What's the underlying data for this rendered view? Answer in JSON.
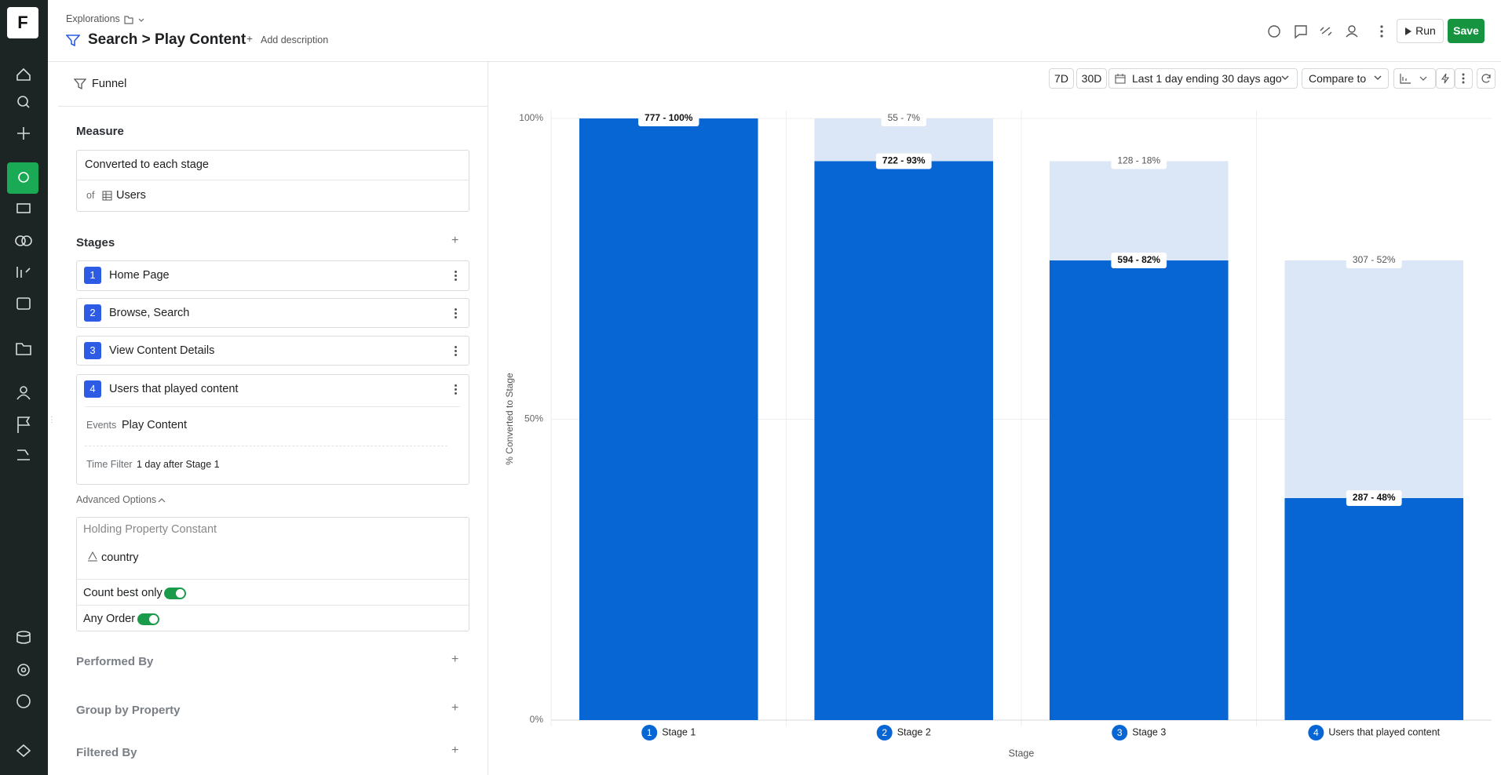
{
  "nav": {
    "logo": "F"
  },
  "header": {
    "breadcrumb": "Explorations",
    "title": "Search > Play Content",
    "add_description": "Add description",
    "run": "Run",
    "save": "Save"
  },
  "panel": {
    "type_label": "Funnel",
    "measure": {
      "heading": "Measure",
      "metric": "Converted to each stage",
      "of": "of",
      "entity": "Users"
    },
    "stages": {
      "heading": "Stages",
      "items": [
        {
          "number": "1",
          "name": "Home Page"
        },
        {
          "number": "2",
          "name": "Browse, Search"
        },
        {
          "number": "3",
          "name": "View Content Details"
        },
        {
          "number": "4",
          "name": "Users that played content",
          "events_label": "Events",
          "event": "Play Content",
          "time_filter_label": "Time Filter",
          "time_filter": "1 day after Stage 1"
        }
      ]
    },
    "advanced": {
      "heading": "Advanced Options",
      "holding_label": "Holding Property Constant",
      "holding_property": "country",
      "count_best_only": "Count best only",
      "count_best_only_on": true,
      "any_order": "Any Order",
      "any_order_on": true
    },
    "performed_by": "Performed By",
    "group_by": "Group by Property",
    "filtered_by": "Filtered By"
  },
  "toolbar": {
    "range_7d": "7D",
    "range_30d": "30D",
    "date_range": "Last 1 day ending 30 days ago",
    "compare": "Compare to"
  },
  "chart_data": {
    "type": "stacked_bar",
    "x_label": "Stage",
    "y_label": "% Converted to Stage",
    "categories": [
      "Stage 1",
      "Stage 2",
      "Stage 3",
      "Users that played content"
    ],
    "category_numbers": [
      "1",
      "2",
      "3",
      "4"
    ],
    "ylim": [
      0,
      100
    ],
    "yticks": [
      {
        "value": 0,
        "label": "0%"
      },
      {
        "value": 50,
        "label": "50%"
      },
      {
        "value": 100,
        "label": "100%"
      }
    ],
    "grid": true,
    "series": [
      {
        "color": "#0866d4",
        "values": [
          100,
          92.9,
          76.4,
          36.9
        ],
        "value_labels": [
          "777 - 100%",
          "722 - 93%",
          "594 - 82%",
          "287 - 48%"
        ]
      },
      {
        "color": "#dbe7f6",
        "values": [
          null,
          7.1,
          16.5,
          39.5
        ],
        "value_labels": [
          null,
          "55 - 7%",
          "128 - 18%",
          "307 - 52%"
        ]
      }
    ]
  }
}
